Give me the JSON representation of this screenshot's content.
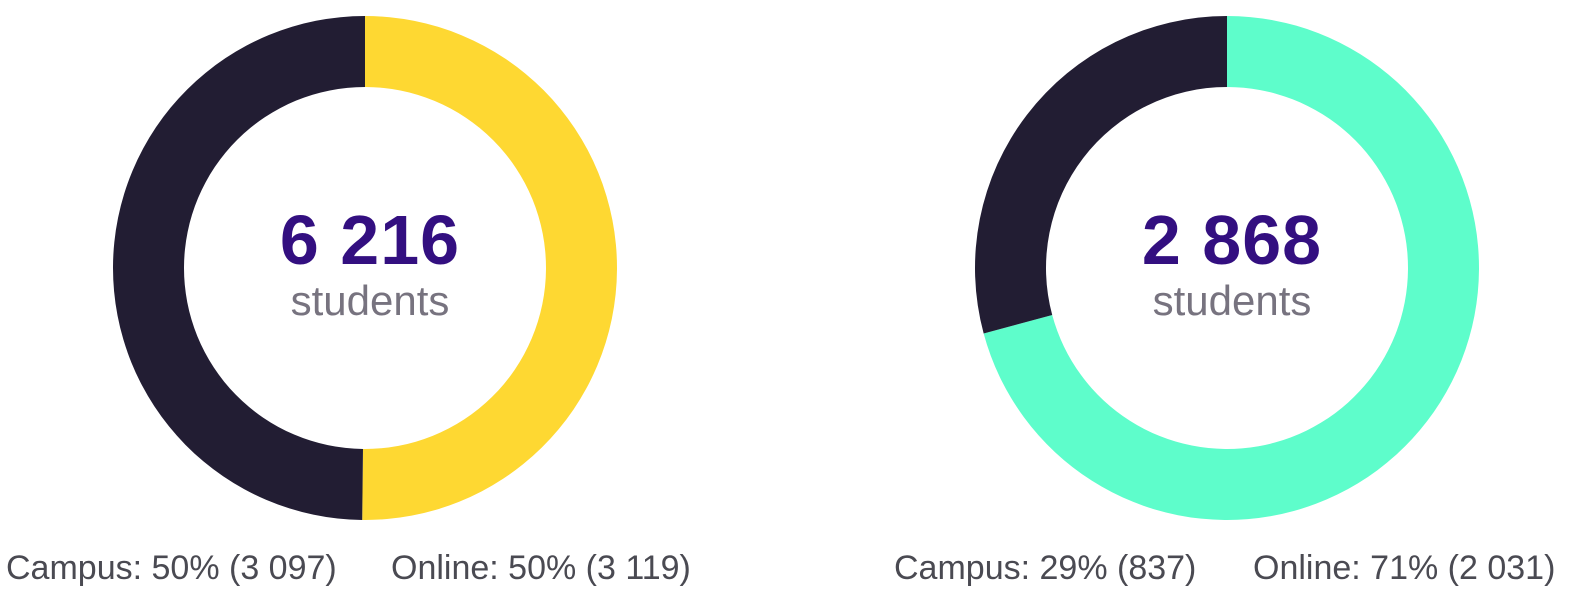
{
  "colors": {
    "campus": "#221d33",
    "total_text": "#330f80",
    "label_text": "#77737f",
    "legend_text": "#4a4a52"
  },
  "chart_data": [
    {
      "type": "pie",
      "style": "donut",
      "center_value": "6 216",
      "center_label": "students",
      "slices": [
        {
          "label": "Campus",
          "value": 3097,
          "percent": 50,
          "color": "#221d33",
          "text": "Campus: 50% (3 097)"
        },
        {
          "label": "Online",
          "value": 3119,
          "percent": 50,
          "color": "#fed832",
          "text": "Online: 50% (3 119)"
        }
      ]
    },
    {
      "type": "pie",
      "style": "donut",
      "center_value": "2 868",
      "center_label": "students",
      "slices": [
        {
          "label": "Campus",
          "value": 837,
          "percent": 29,
          "color": "#221d33",
          "text": "Campus: 29% (837)"
        },
        {
          "label": "Online",
          "value": 2031,
          "percent": 71,
          "color": "#5efdcb",
          "text": "Online: 71% (2 031)"
        }
      ]
    }
  ]
}
